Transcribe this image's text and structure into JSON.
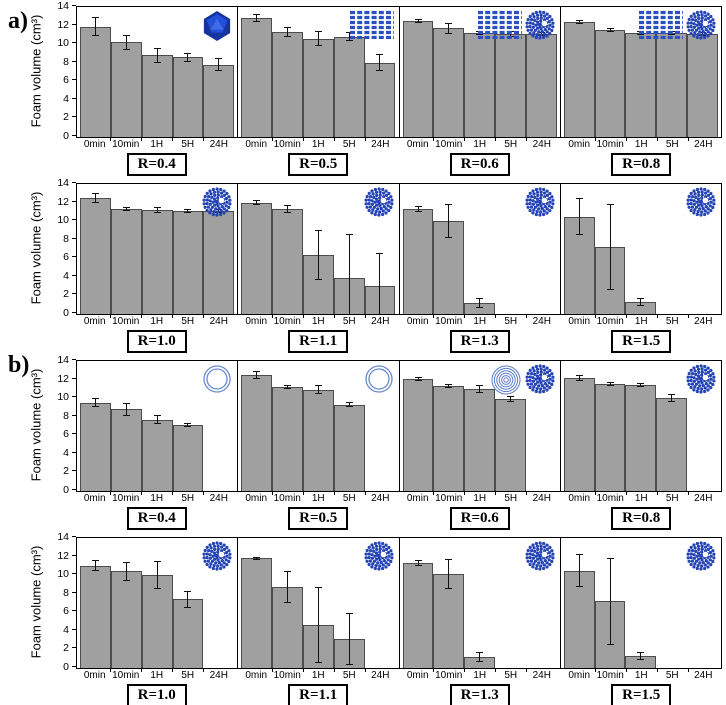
{
  "figure": {
    "panel_a_label": "a)",
    "panel_b_label": "b)"
  },
  "colors": {
    "bar": "#a0a0a0",
    "bar_border": "#4c4c4c",
    "frame": "#000000",
    "icon_blue_dark": "#16339e",
    "icon_blue": "#2b4fc0",
    "icon_blue_light": "#6b8cce"
  },
  "chart_data": {
    "type": "bar",
    "categories": [
      "0min",
      "10min",
      "1H",
      "5H",
      "24H"
    ],
    "ylabel": "Foam volume (cm³)",
    "ylim": [
      0,
      14
    ],
    "yticks": [
      0,
      2,
      4,
      6,
      8,
      10,
      12,
      14
    ],
    "grid": false,
    "legend": "none",
    "rows": [
      {
        "panel": "a",
        "charts": [
          {
            "label": "R=0.4",
            "values": [
              11.9,
              10.2,
              8.8,
              8.6,
              7.8
            ],
            "errors": [
              1.0,
              0.8,
              0.8,
              0.5,
              0.7
            ],
            "icons": [
              "icosahedron"
            ]
          },
          {
            "label": "R=0.5",
            "values": [
              12.8,
              11.3,
              10.6,
              10.8,
              8.0
            ],
            "errors": [
              0.4,
              0.5,
              0.8,
              0.5,
              0.9
            ],
            "icons": [
              "lamellar"
            ]
          },
          {
            "label": "R=0.6",
            "values": [
              12.5,
              11.7,
              11.2,
              11.1,
              11.1
            ],
            "errors": [
              0.2,
              0.6,
              0.2,
              0.3,
              0.2
            ],
            "icons": [
              "lamellar",
              "micelle"
            ]
          },
          {
            "label": "R=0.8",
            "values": [
              12.4,
              11.5,
              11.2,
              11.2,
              11.1
            ],
            "errors": [
              0.2,
              0.2,
              0.2,
              0.2,
              0.2
            ],
            "icons": [
              "lamellar",
              "micelle"
            ]
          }
        ]
      },
      {
        "panel": "a",
        "charts": [
          {
            "label": "R=1.0",
            "values": [
              12.5,
              11.3,
              11.2,
              11.1,
              11.1
            ],
            "errors": [
              0.5,
              0.2,
              0.3,
              0.2,
              0.2
            ],
            "icons": [
              "micelle"
            ]
          },
          {
            "label": "R=1.1",
            "values": [
              12.0,
              11.3,
              6.4,
              3.9,
              3.0
            ],
            "errors": [
              0.3,
              0.4,
              2.7,
              4.7,
              3.6
            ],
            "icons": [
              "micelle"
            ]
          },
          {
            "label": "R=1.3",
            "values": [
              11.3,
              10.0,
              1.2,
              0,
              0
            ],
            "errors": [
              0.3,
              1.8,
              0.5,
              0,
              0
            ],
            "icons": [
              "micelle"
            ]
          },
          {
            "label": "R=1.5",
            "values": [
              10.5,
              7.2,
              1.3,
              0,
              0
            ],
            "errors": [
              2.0,
              4.6,
              0.4,
              0,
              0
            ],
            "icons": [
              "micelle"
            ]
          }
        ]
      },
      {
        "panel": "b",
        "charts": [
          {
            "label": "R=0.4",
            "values": [
              9.5,
              8.8,
              7.7,
              7.1,
              0
            ],
            "errors": [
              0.5,
              0.7,
              0.5,
              0.2,
              0
            ],
            "icons": [
              "vesicle"
            ]
          },
          {
            "label": "R=0.5",
            "values": [
              12.5,
              11.2,
              10.9,
              9.3,
              0
            ],
            "errors": [
              0.4,
              0.2,
              0.5,
              0.3,
              0
            ],
            "icons": [
              "vesicle"
            ]
          },
          {
            "label": "R=0.6",
            "values": [
              12.1,
              11.3,
              11.0,
              9.9,
              0
            ],
            "errors": [
              0.2,
              0.2,
              0.4,
              0.3,
              0
            ],
            "icons": [
              "multilamellar",
              "micelle"
            ]
          },
          {
            "label": "R=0.8",
            "values": [
              12.2,
              11.5,
              11.4,
              10.0,
              0
            ],
            "errors": [
              0.3,
              0.2,
              0.2,
              0.4,
              0
            ],
            "icons": [
              "micelle"
            ]
          }
        ]
      },
      {
        "panel": "b",
        "charts": [
          {
            "label": "R=1.0",
            "values": [
              11.0,
              10.4,
              10.0,
              7.4,
              0
            ],
            "errors": [
              0.6,
              1.0,
              1.5,
              0.9,
              0
            ],
            "icons": [
              "micelle"
            ]
          },
          {
            "label": "R=1.1",
            "values": [
              11.8,
              8.7,
              4.6,
              3.1,
              0
            ],
            "errors": [
              0.2,
              1.7,
              4.1,
              2.8,
              0
            ],
            "icons": [
              "micelle"
            ]
          },
          {
            "label": "R=1.3",
            "values": [
              11.3,
              10.1,
              1.2,
              0,
              0
            ],
            "errors": [
              0.3,
              1.6,
              0.5,
              0,
              0
            ],
            "icons": [
              "micelle"
            ]
          },
          {
            "label": "R=1.5",
            "values": [
              10.5,
              7.2,
              1.3,
              0,
              0
            ],
            "errors": [
              1.8,
              4.7,
              0.4,
              0,
              0
            ],
            "icons": [
              "micelle"
            ]
          }
        ]
      }
    ]
  }
}
